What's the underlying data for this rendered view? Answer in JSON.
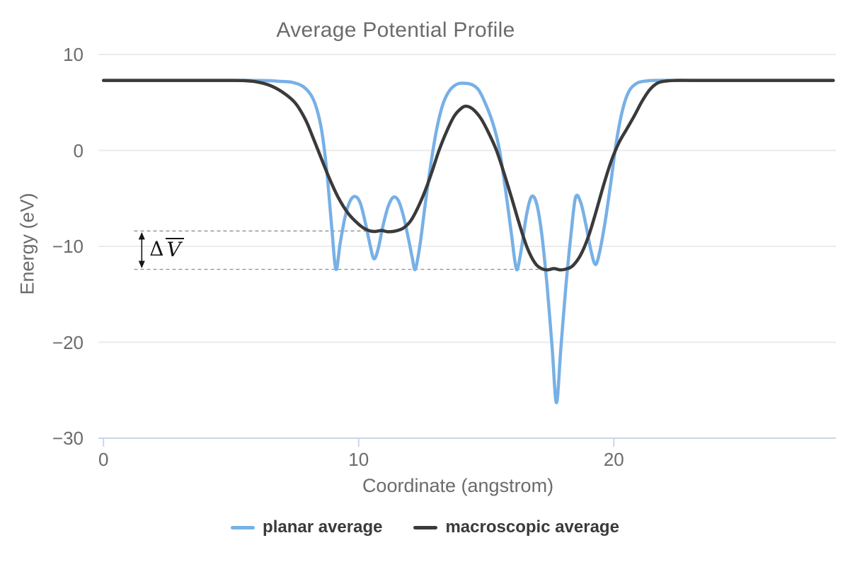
{
  "page": {
    "background": "#ffffff"
  },
  "chart_data": {
    "type": "line",
    "title": "Average Potential Profile",
    "xlabel": "Coordinate (angstrom)",
    "ylabel": "Energy (eV)",
    "xlim": [
      -0.2,
      28.7
    ],
    "ylim": [
      -30,
      10
    ],
    "grid": true,
    "legend_position": "bottom-center",
    "colors": {
      "gridline": "#ebebeb",
      "axis_line": "#c9d5e8",
      "tick_text": "#6b6b6b",
      "title_text": "#6b6b6b",
      "legend_text": "#3a3a3a",
      "guide": "#8f8f8f",
      "annotation": "#151515"
    },
    "x_ticks": [
      {
        "value": 0,
        "label": "0"
      },
      {
        "value": 10,
        "label": "10"
      },
      {
        "value": 20,
        "label": "20"
      }
    ],
    "y_ticks": [
      {
        "value": 10,
        "label": "10"
      },
      {
        "value": 0,
        "label": "0"
      },
      {
        "value": -10,
        "label": "−10"
      },
      {
        "value": -20,
        "label": "−20"
      },
      {
        "value": -30,
        "label": "−30"
      }
    ],
    "series": [
      {
        "name": "planar average",
        "color": "#77b0e6",
        "line_width": 4.5,
        "points": [
          [
            0,
            7.3
          ],
          [
            1,
            7.3
          ],
          [
            2,
            7.3
          ],
          [
            3,
            7.3
          ],
          [
            4,
            7.3
          ],
          [
            5,
            7.3
          ],
          [
            5.8,
            7.3
          ],
          [
            6.4,
            7.28
          ],
          [
            6.9,
            7.2
          ],
          [
            7.4,
            7.1
          ],
          [
            7.8,
            6.7
          ],
          [
            8.1,
            5.9
          ],
          [
            8.3,
            4.8
          ],
          [
            8.5,
            2.8
          ],
          [
            8.65,
            0.2
          ],
          [
            8.8,
            -3.5
          ],
          [
            8.95,
            -8.2
          ],
          [
            9.11,
            -12.4
          ],
          [
            9.28,
            -9.6
          ],
          [
            9.47,
            -6.9
          ],
          [
            9.66,
            -5.3
          ],
          [
            9.85,
            -4.8
          ],
          [
            10.05,
            -5.4
          ],
          [
            10.25,
            -7.4
          ],
          [
            10.45,
            -9.9
          ],
          [
            10.6,
            -11.3
          ],
          [
            10.76,
            -10.3
          ],
          [
            10.95,
            -7.9
          ],
          [
            11.15,
            -5.9
          ],
          [
            11.35,
            -4.9
          ],
          [
            11.55,
            -5.2
          ],
          [
            11.75,
            -6.8
          ],
          [
            11.95,
            -9.2
          ],
          [
            12.1,
            -11.2
          ],
          [
            12.22,
            -12.4
          ],
          [
            12.4,
            -9.9
          ],
          [
            12.6,
            -5.8
          ],
          [
            12.82,
            -1.6
          ],
          [
            13.05,
            2.1
          ],
          [
            13.3,
            4.8
          ],
          [
            13.55,
            6.2
          ],
          [
            13.85,
            6.9
          ],
          [
            14.15,
            7.0
          ],
          [
            14.45,
            6.85
          ],
          [
            14.7,
            6.3
          ],
          [
            14.95,
            5.0
          ],
          [
            15.25,
            2.9
          ],
          [
            15.5,
            0.3
          ],
          [
            15.75,
            -4.0
          ],
          [
            16.0,
            -9.0
          ],
          [
            16.12,
            -11.5
          ],
          [
            16.22,
            -12.4
          ],
          [
            16.38,
            -10.2
          ],
          [
            16.58,
            -6.7
          ],
          [
            16.78,
            -4.8
          ],
          [
            16.98,
            -5.6
          ],
          [
            17.18,
            -8.8
          ],
          [
            17.38,
            -14.0
          ],
          [
            17.58,
            -20.5
          ],
          [
            17.75,
            -26.3
          ],
          [
            17.92,
            -20.8
          ],
          [
            18.12,
            -14.2
          ],
          [
            18.32,
            -8.8
          ],
          [
            18.5,
            -4.9
          ],
          [
            18.7,
            -5.4
          ],
          [
            18.9,
            -7.7
          ],
          [
            19.1,
            -10.4
          ],
          [
            19.28,
            -11.9
          ],
          [
            19.46,
            -10.4
          ],
          [
            19.66,
            -7.4
          ],
          [
            19.88,
            -3.4
          ],
          [
            20.1,
            0.9
          ],
          [
            20.35,
            4.3
          ],
          [
            20.6,
            6.2
          ],
          [
            20.9,
            7.0
          ],
          [
            21.2,
            7.22
          ],
          [
            21.6,
            7.3
          ],
          [
            22.3,
            7.3
          ],
          [
            23,
            7.3
          ],
          [
            24,
            7.3
          ],
          [
            25,
            7.3
          ],
          [
            26,
            7.3
          ],
          [
            27,
            7.3
          ],
          [
            28,
            7.3
          ],
          [
            28.6,
            7.3
          ]
        ]
      },
      {
        "name": "macroscopic average",
        "color": "#3a3a3a",
        "line_width": 4.5,
        "points": [
          [
            0,
            7.3
          ],
          [
            1,
            7.3
          ],
          [
            2,
            7.3
          ],
          [
            3,
            7.3
          ],
          [
            4,
            7.3
          ],
          [
            5,
            7.3
          ],
          [
            5.5,
            7.28
          ],
          [
            6.0,
            7.15
          ],
          [
            6.5,
            6.8
          ],
          [
            7.0,
            6.1
          ],
          [
            7.5,
            5.0
          ],
          [
            7.9,
            3.3
          ],
          [
            8.2,
            1.4
          ],
          [
            8.5,
            -0.6
          ],
          [
            8.85,
            -2.9
          ],
          [
            9.2,
            -4.9
          ],
          [
            9.6,
            -6.6
          ],
          [
            10.0,
            -7.7
          ],
          [
            10.3,
            -8.25
          ],
          [
            10.6,
            -8.45
          ],
          [
            10.9,
            -8.35
          ],
          [
            11.15,
            -8.48
          ],
          [
            11.45,
            -8.4
          ],
          [
            11.75,
            -8.1
          ],
          [
            12.05,
            -7.3
          ],
          [
            12.35,
            -5.8
          ],
          [
            12.65,
            -3.9
          ],
          [
            12.9,
            -2.0
          ],
          [
            13.15,
            0.0
          ],
          [
            13.45,
            2.0
          ],
          [
            13.75,
            3.6
          ],
          [
            14.05,
            4.45
          ],
          [
            14.25,
            4.6
          ],
          [
            14.5,
            4.25
          ],
          [
            14.8,
            3.3
          ],
          [
            15.1,
            1.8
          ],
          [
            15.4,
            0.0
          ],
          [
            15.7,
            -2.4
          ],
          [
            16.0,
            -5.0
          ],
          [
            16.3,
            -7.7
          ],
          [
            16.6,
            -10.1
          ],
          [
            16.9,
            -11.7
          ],
          [
            17.15,
            -12.3
          ],
          [
            17.4,
            -12.45
          ],
          [
            17.65,
            -12.32
          ],
          [
            17.9,
            -12.45
          ],
          [
            18.15,
            -12.35
          ],
          [
            18.4,
            -12.0
          ],
          [
            18.7,
            -10.9
          ],
          [
            19.0,
            -9.0
          ],
          [
            19.3,
            -6.4
          ],
          [
            19.6,
            -3.6
          ],
          [
            19.9,
            -1.1
          ],
          [
            20.2,
            0.8
          ],
          [
            20.5,
            2.2
          ],
          [
            20.8,
            3.6
          ],
          [
            21.1,
            5.1
          ],
          [
            21.4,
            6.3
          ],
          [
            21.7,
            7.0
          ],
          [
            22.0,
            7.22
          ],
          [
            22.4,
            7.3
          ],
          [
            23,
            7.3
          ],
          [
            24,
            7.3
          ],
          [
            25,
            7.3
          ],
          [
            26,
            7.3
          ],
          [
            27,
            7.3
          ],
          [
            28,
            7.3
          ],
          [
            28.6,
            7.3
          ]
        ]
      }
    ],
    "guides": [
      {
        "y": -8.4,
        "x_from": 1.2,
        "x_to": 11.5,
        "style": "dashed"
      },
      {
        "y": -12.4,
        "x_from": 1.2,
        "x_to": 18.3,
        "style": "dashed"
      }
    ],
    "annotation": {
      "delta": "Δ",
      "variable": "V",
      "overline": true,
      "x": 1.5,
      "from_level": -8.4,
      "to_level": -12.4
    }
  }
}
